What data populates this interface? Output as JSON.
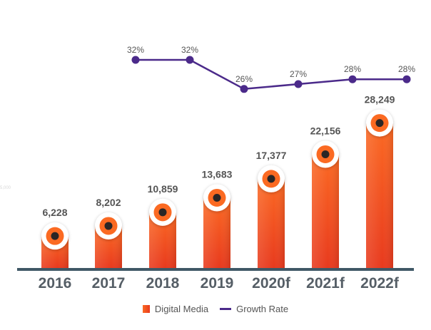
{
  "chart_data": {
    "type": "bar",
    "categories": [
      "2016",
      "2017",
      "2018",
      "2019",
      "2020f",
      "2021f",
      "2022f"
    ],
    "series": [
      {
        "name": "Digital Media",
        "type": "bar",
        "values": [
          6228,
          8202,
          10859,
          13683,
          17377,
          22156,
          28249
        ],
        "labels": [
          "6,228",
          "8,202",
          "10,859",
          "13,683",
          "17,377",
          "22,156",
          "28,249"
        ]
      },
      {
        "name": "Growth Rate",
        "type": "line",
        "values": [
          null,
          32,
          32,
          26,
          27,
          28,
          28
        ],
        "labels": [
          "",
          "32%",
          "32%",
          "26%",
          "27%",
          "28%",
          "28%"
        ]
      }
    ],
    "ylim": [
      0,
      30000
    ],
    "line_ylim": [
      20,
      35
    ],
    "ghost_tick": "5,000",
    "grid": false,
    "legend_position": "bottom-center"
  },
  "colors": {
    "bar_top": "#fb6a23",
    "bar_bottom": "#e83a1e",
    "line": "#4b2a8a",
    "baseline": "#3f5866",
    "label": "#555555",
    "category": "#555e66"
  }
}
